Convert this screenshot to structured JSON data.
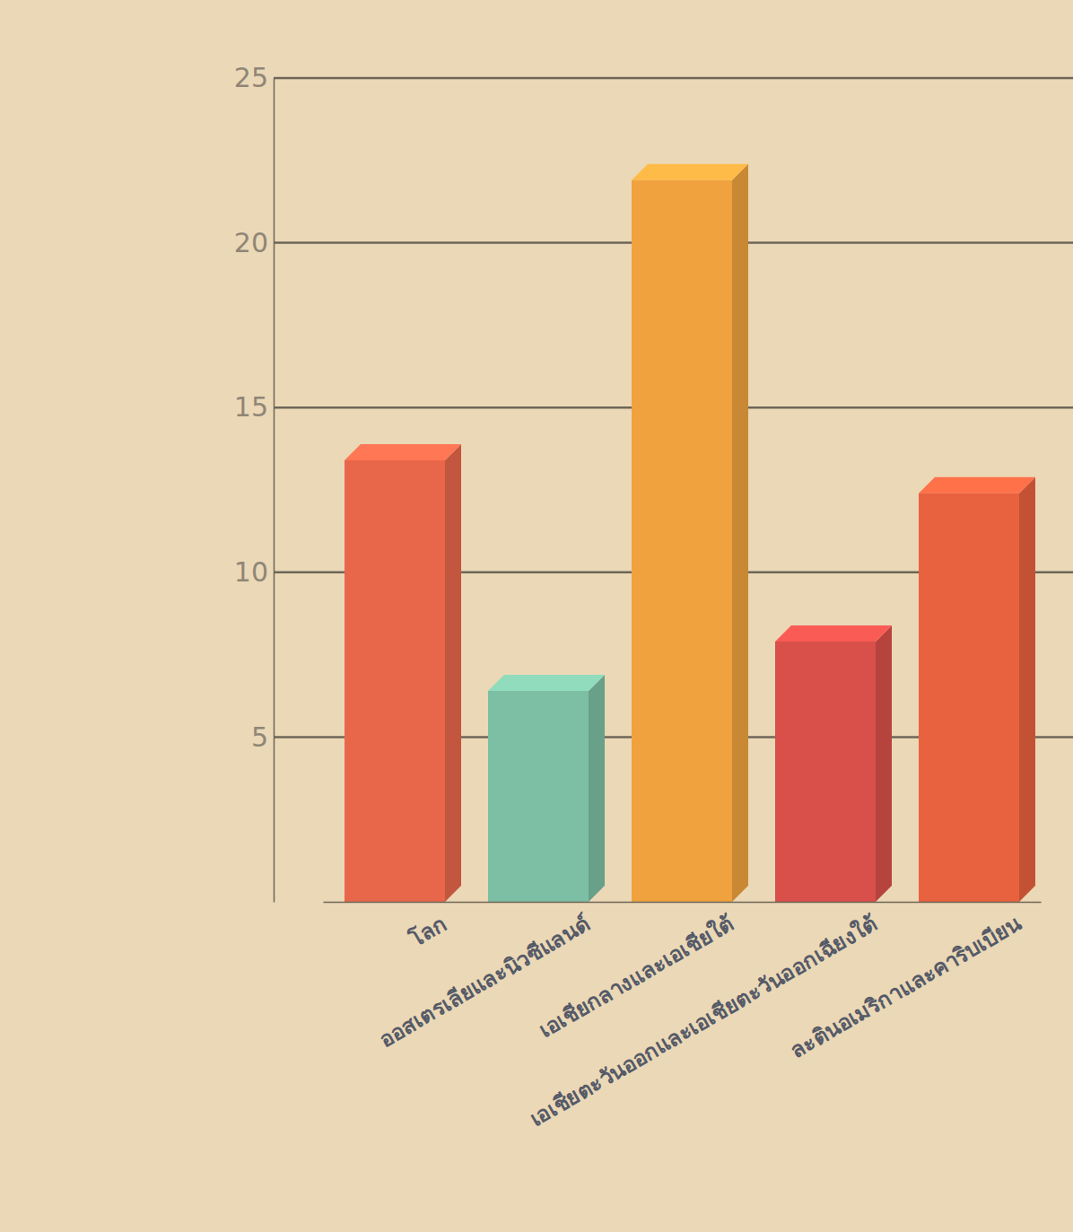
{
  "chart_data": {
    "type": "bar",
    "categories": [
      "โลก",
      "ออสเตรเลียและนิวซีแลนด์",
      "เอเชียกลางและเอเชียใต้",
      "เอเชียตะวันออกและเอเชียตะวันออกเฉียงใต้",
      "ละตินอเมริกาและคาริบเบียน"
    ],
    "values": [
      13.4,
      6.4,
      21.9,
      7.9,
      12.4
    ],
    "colors": [
      "#e8674a",
      "#7dbfa4",
      "#f0a23e",
      "#d9504a",
      "#e9623f"
    ],
    "ylim": [
      0,
      25
    ],
    "yticks": [
      5,
      10,
      15,
      20,
      25
    ],
    "grid": true
  }
}
